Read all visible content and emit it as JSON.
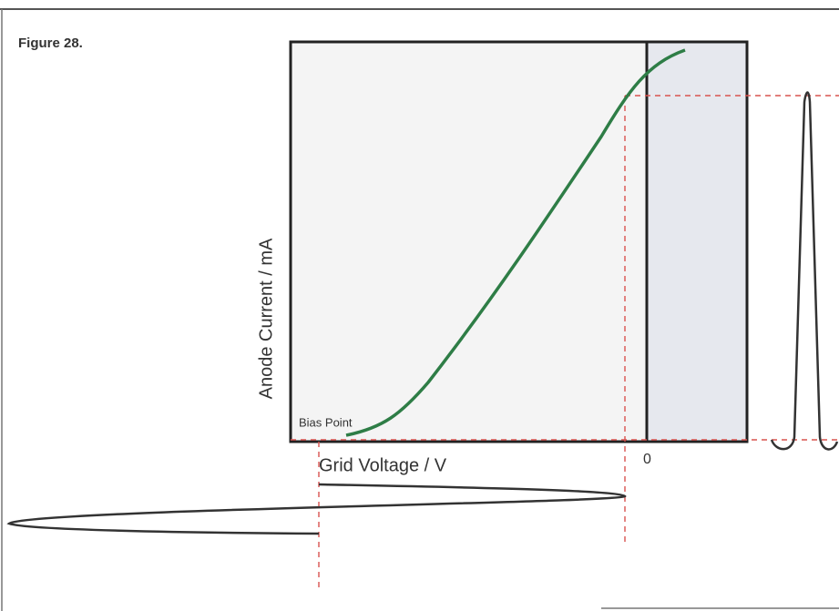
{
  "figure_label": "Figure 28.",
  "y_axis_label": "Anode Current / mA",
  "x_axis_label": "Grid Voltage / V",
  "bias_label": "Bias Point",
  "zero_label": "0"
}
